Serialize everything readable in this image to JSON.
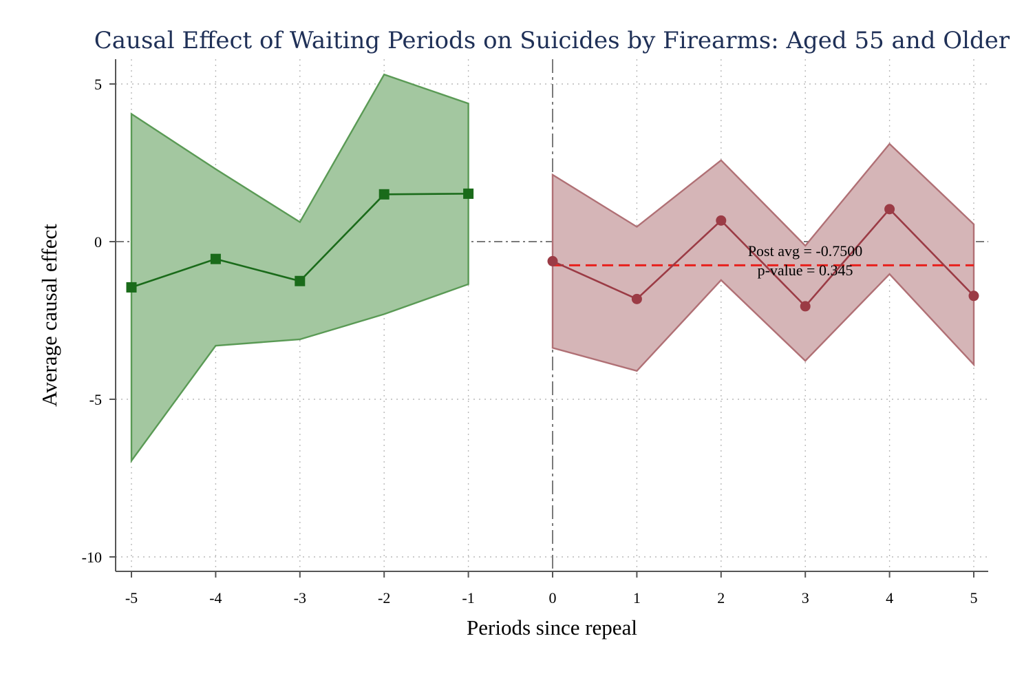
{
  "chart_data": {
    "type": "line",
    "title": "Causal Effect of Waiting Periods on Suicides by Firearms: Aged 55 and Older",
    "xlabel": "Periods since repeal",
    "ylabel": "Average causal effect",
    "xlim": [
      -5.18,
      5.18
    ],
    "ylim": [
      -10.45,
      5.8
    ],
    "xticks": [
      -5,
      -4,
      -3,
      -2,
      -1,
      0,
      1,
      2,
      3,
      4,
      5
    ],
    "yticks": [
      5,
      0,
      -5,
      -10
    ],
    "grid": true,
    "reference_lines": {
      "y": 0,
      "x": 0
    },
    "series": [
      {
        "marker": "square",
        "color": "#1a6b1a",
        "fill": "#a3c7a0",
        "fill_edge": "#5a9a55",
        "x": [
          -5,
          -4,
          -3,
          -2,
          -1
        ],
        "y": [
          -1.45,
          -0.55,
          -1.25,
          1.5,
          1.52
        ],
        "ci_upper": [
          4.05,
          2.3,
          0.62,
          5.3,
          4.38
        ],
        "ci_lower": [
          -6.95,
          -3.3,
          -3.1,
          -2.3,
          -1.35
        ]
      },
      {
        "marker": "circle",
        "color": "#9b3b45",
        "fill": "#d5b5b7",
        "fill_edge": "#b07075",
        "x": [
          0,
          1,
          2,
          3,
          4,
          5
        ],
        "y": [
          -0.62,
          -1.82,
          0.67,
          -2.05,
          1.03,
          -1.72
        ],
        "ci_upper": [
          2.12,
          0.47,
          2.58,
          -0.13,
          3.1,
          0.55
        ],
        "ci_lower": [
          -3.37,
          -4.1,
          -1.22,
          -3.78,
          -1.03,
          -3.9
        ]
      }
    ],
    "post_average": {
      "value": -0.75,
      "color": "#e8201c"
    },
    "annotations": [
      "Post avg = -0.7500",
      "p-value = 0.345"
    ]
  }
}
